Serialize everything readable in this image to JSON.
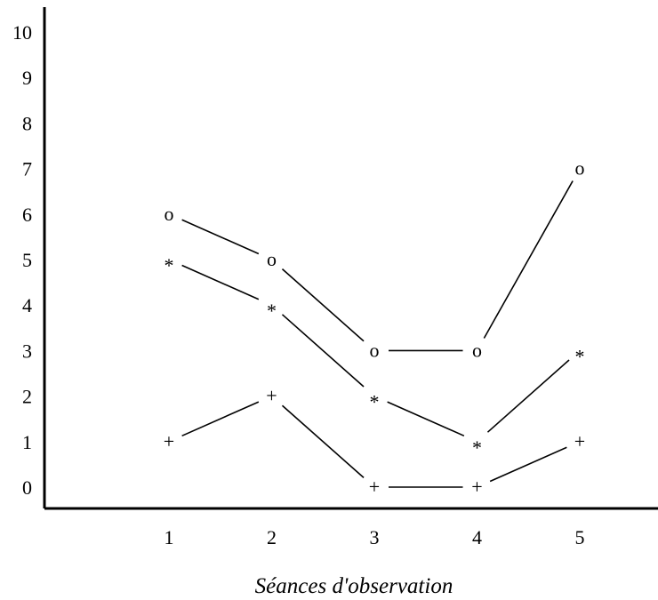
{
  "chart_data": {
    "type": "line",
    "title": "",
    "xlabel": "Séances d'observation",
    "ylabel": "",
    "x": [
      1,
      2,
      3,
      4,
      5
    ],
    "xlim": [
      0,
      6
    ],
    "ylim": [
      0,
      10
    ],
    "x_ticks": [
      "1",
      "2",
      "3",
      "4",
      "5"
    ],
    "y_ticks": [
      "0",
      "1",
      "2",
      "3",
      "4",
      "5",
      "6",
      "7",
      "8",
      "9",
      "10"
    ],
    "grid": false,
    "legend": "none",
    "series": [
      {
        "marker": "o",
        "values": [
          6,
          5,
          3,
          3,
          7
        ]
      },
      {
        "marker": "*",
        "values": [
          5,
          4,
          2,
          1,
          3
        ]
      },
      {
        "marker": "+",
        "values": [
          1,
          2,
          0,
          0,
          1
        ]
      }
    ]
  }
}
